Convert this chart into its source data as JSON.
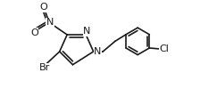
{
  "bg_color": "#ffffff",
  "line_color": "#1a1a1a",
  "line_width": 1.2,
  "font_size": 8.0,
  "figsize": [
    2.43,
    1.18
  ],
  "dpi": 100,
  "xlim": [
    -0.5,
    8.5
  ],
  "ylim": [
    -0.8,
    4.8
  ]
}
